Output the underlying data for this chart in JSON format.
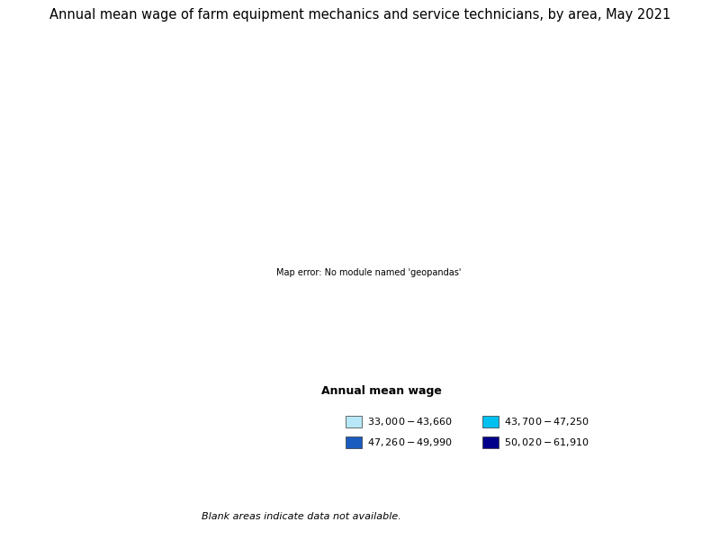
{
  "title": "Annual mean wage of farm equipment mechanics and service technicians, by area, May 2021",
  "legend_title": "Annual mean wage",
  "legend_items": [
    {
      "label": "$33,000 - $43,660",
      "color": "#b8e8f8"
    },
    {
      "label": "$43,700 - $47,250",
      "color": "#00c0f0"
    },
    {
      "label": "$47,260 - $49,990",
      "color": "#1a5bbf"
    },
    {
      "label": "$50,020 - $61,910",
      "color": "#00008b"
    }
  ],
  "blank_note": "Blank areas indicate data not available.",
  "background_color": "#ffffff",
  "map_edge_color": "#000000",
  "map_edge_width": 0.3,
  "state_edge_width": 0.8,
  "title_fontsize": 10.5,
  "legend_title_fontsize": 9,
  "legend_fontsize": 8,
  "note_fontsize": 8,
  "state_colors": {
    "Alabama": "#b8e8f8",
    "Alaska": "#ffffff",
    "Arizona": "#00008b",
    "Arkansas": "#b8e8f8",
    "California": "#1a5bbf",
    "Colorado": "#00008b",
    "Connecticut": "#00c0f0",
    "Delaware": "#b8e8f8",
    "Florida": "#b8e8f8",
    "Georgia": "#b8e8f8",
    "Hawaii": "#ffffff",
    "Idaho": "#00008b",
    "Illinois": "#1a5bbf",
    "Indiana": "#b8e8f8",
    "Iowa": "#00008b",
    "Kansas": "#00c0f0",
    "Kentucky": "#b8e8f8",
    "Louisiana": "#b8e8f8",
    "Maine": "#00c0f0",
    "Maryland": "#b8e8f8",
    "Massachusetts": "#00c0f0",
    "Michigan": "#1a5bbf",
    "Minnesota": "#00008b",
    "Mississippi": "#b8e8f8",
    "Missouri": "#b8e8f8",
    "Montana": "#00008b",
    "Nebraska": "#1a5bbf",
    "Nevada": "#ffffff",
    "New Hampshire": "#b8e8f8",
    "New Jersey": "#b8e8f8",
    "New Mexico": "#00008b",
    "New York": "#00c0f0",
    "North Carolina": "#b8e8f8",
    "North Dakota": "#00008b",
    "Ohio": "#b8e8f8",
    "Oklahoma": "#00c0f0",
    "Oregon": "#00008b",
    "Pennsylvania": "#b8e8f8",
    "Rhode Island": "#b8e8f8",
    "South Carolina": "#b8e8f8",
    "South Dakota": "#00008b",
    "Tennessee": "#b8e8f8",
    "Texas": "#00c0f0",
    "Utah": "#ffffff",
    "Vermont": "#b8e8f8",
    "Virginia": "#b8e8f8",
    "Washington": "#00008b",
    "West Virginia": "#b8e8f8",
    "Wisconsin": "#1a5bbf",
    "Wyoming": "#00008b"
  }
}
